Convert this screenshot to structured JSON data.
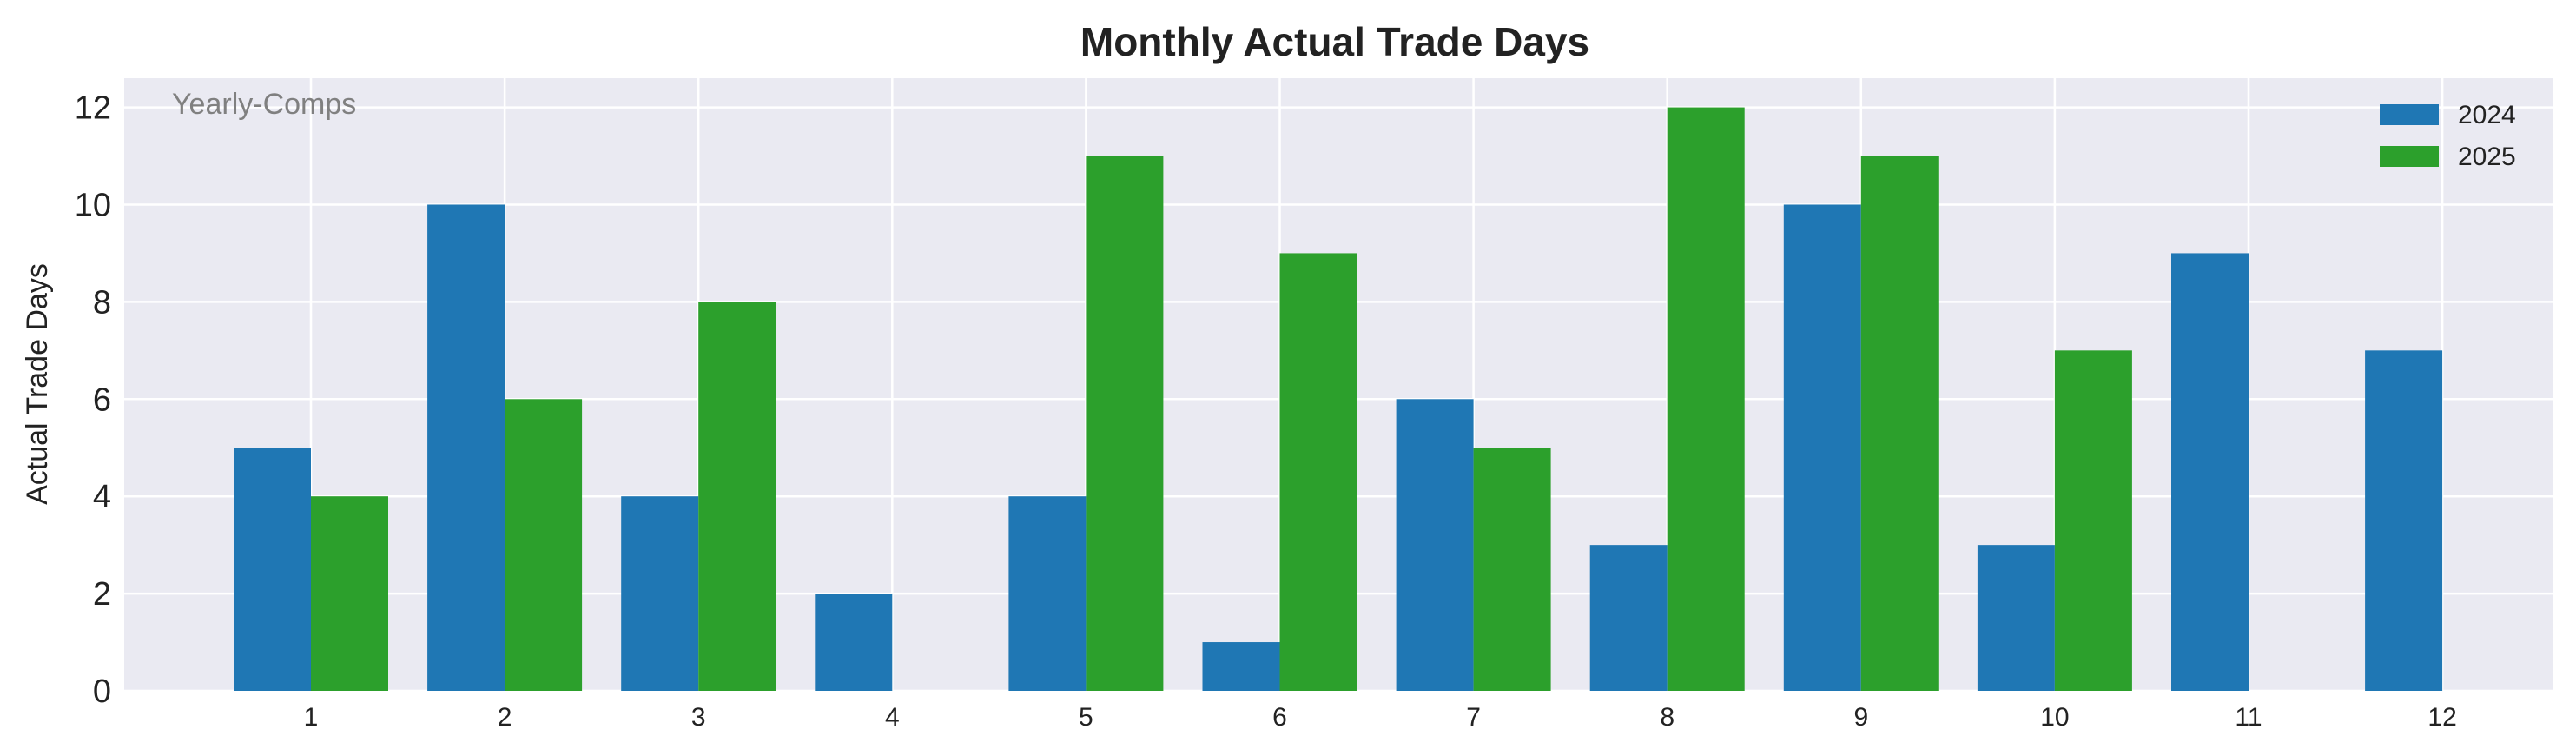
{
  "chart_data": {
    "type": "bar",
    "title": "Monthly Actual Trade Days",
    "ylabel": "Actual Trade Days",
    "xlabel": "",
    "annotation": "Yearly-Comps",
    "categories": [
      "1",
      "2",
      "3",
      "4",
      "5",
      "6",
      "7",
      "8",
      "9",
      "10",
      "11",
      "12"
    ],
    "series": [
      {
        "name": "2024",
        "color": "#1f77b4",
        "values": [
          5,
          10,
          4,
          2,
          4,
          1,
          6,
          3,
          10,
          3,
          9,
          7
        ]
      },
      {
        "name": "2025",
        "color": "#2ca02c",
        "values": [
          4,
          6,
          8,
          0,
          11,
          9,
          5,
          12,
          11,
          7,
          0,
          0
        ]
      }
    ],
    "yticks": [
      "0",
      "2",
      "4",
      "6",
      "8",
      "10",
      "12"
    ],
    "ylim": [
      0,
      12.6
    ],
    "grid": true,
    "legend_position": "top-right",
    "background_color": "#eaeaf2"
  }
}
